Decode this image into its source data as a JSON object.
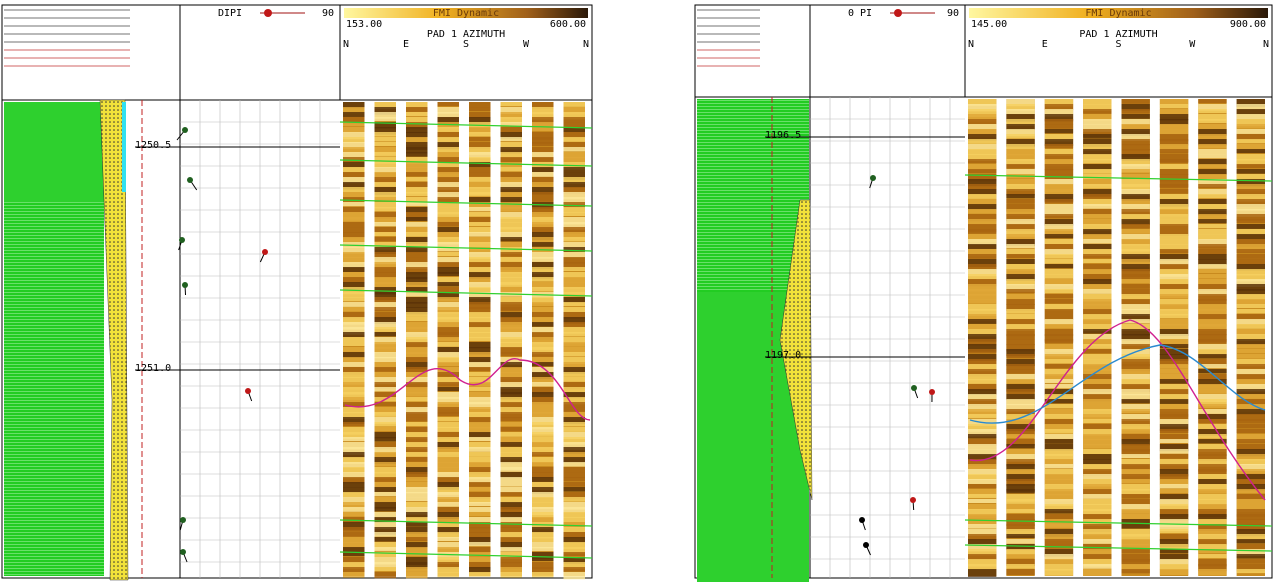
{
  "left_panel": {
    "dip_label": "DIPI",
    "dip_max": "90",
    "image_title": "FMI Dynamic",
    "scale_min": "153.00",
    "scale_max": "600.00",
    "azimuth_title": "PAD 1 AZIMUTH",
    "azimuth_ticks": [
      "N",
      "E",
      "S",
      "W",
      "N"
    ],
    "depths": [
      "1250.5",
      "1251.0"
    ]
  },
  "right_panel": {
    "dip_label": "0 PI",
    "dip_max": "90",
    "image_title": "FMI Dynamic",
    "scale_min": "145.00",
    "scale_max": "900.00",
    "azimuth_title": "PAD 1 AZIMUTH",
    "azimuth_ticks": [
      "N",
      "E",
      "S",
      "W",
      "N"
    ],
    "depths": [
      "1196.5",
      "1197.0"
    ]
  }
}
